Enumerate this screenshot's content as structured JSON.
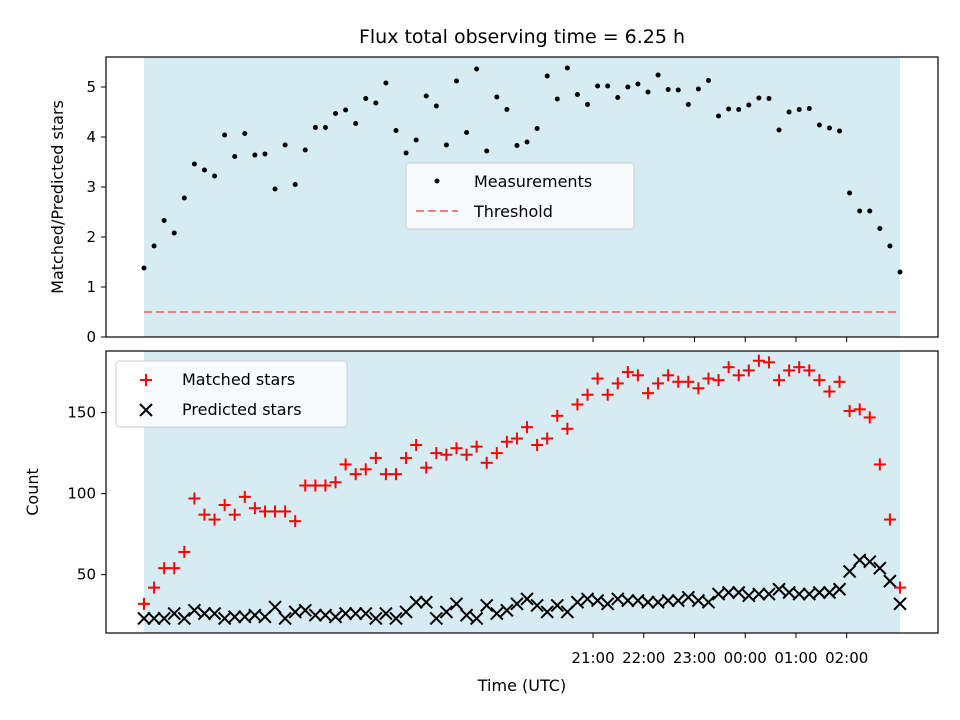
{
  "chart_data": {
    "title": "Flux total observing time = 6.25 h",
    "xlabel": "Time (UTC)",
    "x_ticks": [
      {
        "t": 30.5,
        "label": "21:00"
      },
      {
        "t": 31.5,
        "label": "22:00"
      },
      {
        "t": 32.5,
        "label": "23:00"
      },
      {
        "t": 33.5,
        "label": "00:00"
      },
      {
        "t": 34.5,
        "label": "01:00"
      },
      {
        "t": 35.5,
        "label": "02:00"
      }
    ],
    "colors": {
      "observing_span": "#add8e6",
      "measurements": "#000000",
      "threshold": "#f08080",
      "matched": "#ff0000",
      "predicted": "#000000"
    },
    "top": {
      "type": "scatter",
      "ylabel": "Matched/Predicted stars",
      "ylim": [
        0,
        5.6
      ],
      "y_ticks": [
        0,
        1,
        2,
        3,
        4,
        5
      ],
      "threshold": 0.5,
      "legend": {
        "measurements": "Measurements",
        "threshold": "Threshold"
      },
      "legend_loc": "center",
      "y": [
        1.38,
        1.82,
        2.33,
        2.08,
        2.78,
        3.46,
        3.34,
        3.22,
        4.04,
        3.61,
        4.07,
        3.64,
        3.66,
        2.96,
        3.84,
        3.05,
        3.74,
        4.19,
        4.19,
        4.47,
        4.54,
        4.27,
        4.77,
        4.68,
        5.08,
        4.13,
        3.68,
        3.94,
        4.82,
        4.62,
        3.84,
        5.12,
        4.09,
        5.36,
        3.72,
        4.8,
        4.55,
        3.83,
        3.9,
        4.17,
        5.22,
        4.76,
        5.38,
        4.85,
        4.65,
        5.02,
        5.02,
        4.79,
        5.0,
        5.06,
        4.9,
        5.24,
        4.95,
        4.94,
        4.65,
        4.96,
        5.13,
        4.42,
        4.56,
        4.55,
        4.64,
        4.78,
        4.77,
        4.14,
        4.5,
        4.55,
        4.57,
        4.24,
        4.18,
        4.12,
        2.88,
        2.52,
        2.52,
        2.17,
        1.82,
        1.3
      ]
    },
    "bottom": {
      "type": "scatter",
      "ylabel": "Count",
      "ylim": [
        14,
        188
      ],
      "y_ticks": [
        50,
        100,
        150
      ],
      "legend_loc": "upper left",
      "series": [
        {
          "name": "Matched stars",
          "marker": "+",
          "values": [
            32,
            42,
            54,
            54,
            64,
            97,
            87,
            84,
            93,
            87,
            98,
            91,
            89,
            89,
            89,
            83,
            105,
            105,
            105,
            107,
            118,
            112,
            115,
            122,
            112,
            112,
            122,
            130,
            116,
            125,
            124,
            128,
            124,
            129,
            119,
            125,
            132,
            134,
            141,
            130,
            134,
            148,
            140,
            155,
            161,
            171,
            161,
            168,
            175,
            173,
            162,
            168,
            173,
            169,
            169,
            165,
            171,
            170,
            178,
            173,
            176,
            182,
            181,
            170,
            176,
            178,
            176,
            170,
            163,
            169,
            151,
            152,
            147,
            118,
            84,
            42
          ]
        },
        {
          "name": "Predicted stars",
          "marker": "x",
          "values": [
            23,
            23,
            23,
            26,
            23,
            28,
            26,
            26,
            23,
            24,
            24,
            25,
            24,
            30,
            23,
            27,
            28,
            25,
            25,
            24,
            26,
            26,
            26,
            23,
            26,
            23,
            27,
            33,
            33,
            23,
            27,
            32,
            25,
            23,
            31,
            26,
            28,
            32,
            35,
            31,
            27,
            31,
            27,
            33,
            35,
            34,
            32,
            35,
            34,
            34,
            33,
            33,
            34,
            34,
            36,
            34,
            33,
            38,
            39,
            39,
            37,
            38,
            38,
            41,
            39,
            38,
            38,
            39,
            39,
            41,
            52,
            59,
            58,
            54,
            46,
            32
          ]
        }
      ]
    }
  }
}
